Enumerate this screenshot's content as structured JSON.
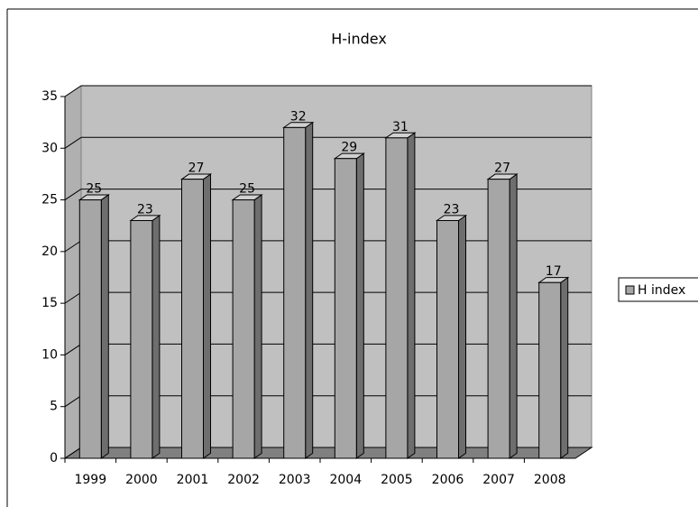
{
  "chart_data": {
    "type": "bar",
    "title": "H-index",
    "categories": [
      "1999",
      "2000",
      "2001",
      "2002",
      "2003",
      "2004",
      "2005",
      "2006",
      "2007",
      "2008"
    ],
    "series": [
      {
        "name": "H index",
        "color": "#a6a6a6",
        "values": [
          25,
          23,
          27,
          25,
          32,
          29,
          31,
          23,
          27,
          17
        ]
      }
    ],
    "ylim": [
      0,
      35
    ],
    "yticks": [
      0,
      5,
      10,
      15,
      20,
      25,
      30,
      35
    ],
    "grid": true,
    "legend": "right"
  }
}
